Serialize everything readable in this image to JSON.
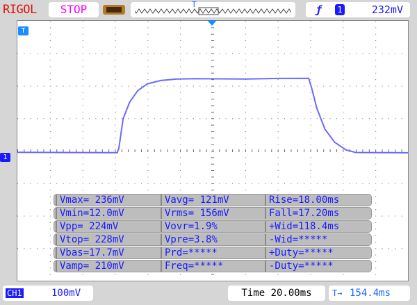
{
  "header": {
    "brand": "RIGOL",
    "run_state": "STOP",
    "battery_icon": "battery-icon",
    "trigger": {
      "edge_icon": "rising-edge-icon",
      "source": "1",
      "level": "232mV"
    },
    "memory_marker": "T"
  },
  "screen": {
    "trigger_marker": "T",
    "channel_marker": "1",
    "trace_color": "#6a6aff"
  },
  "measurements": [
    [
      "Vmax= 236mV",
      "Vavg=  121mV",
      "Rise=18.00ms"
    ],
    [
      "Vmin=12.0mV",
      "Vrms=  156mV",
      "Fall=17.20ms"
    ],
    [
      "Vpp= 224mV",
      "Vovr=1.9%",
      "+Wid=118.4ms"
    ],
    [
      "Vtop= 228mV",
      "Vpre=3.8%",
      "-Wid=*****"
    ],
    [
      "Vbas=17.7mV",
      "Prd=*****",
      "+Duty=*****"
    ],
    [
      "Vamp= 210mV",
      "Freq=*****",
      "-Duty=*****"
    ]
  ],
  "footer": {
    "channel": "CH1",
    "scale": "100mV",
    "time_label": "Time",
    "timebase": "20.00ms",
    "offset": "154.4ms"
  }
}
